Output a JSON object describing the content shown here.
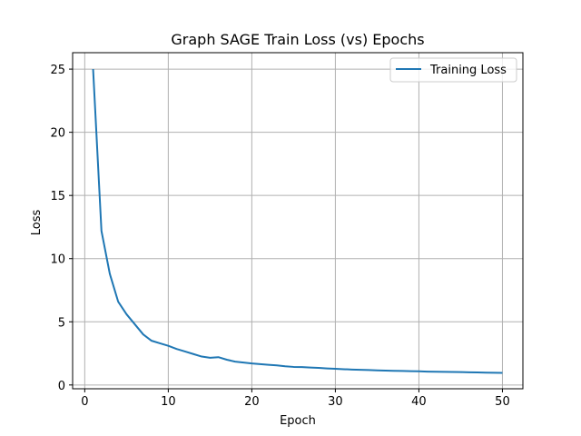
{
  "chart_data": {
    "type": "line",
    "title": "Graph SAGE Train Loss (vs) Epochs",
    "xlabel": "Epoch",
    "ylabel": "Loss",
    "xlim": [
      -1.45,
      52.45
    ],
    "ylim": [
      -0.3,
      26.3
    ],
    "xticks": [
      0,
      10,
      20,
      30,
      40,
      50
    ],
    "yticks": [
      0,
      5,
      10,
      15,
      20,
      25
    ],
    "grid": true,
    "legend_position": "top-right",
    "series": [
      {
        "name": "Training Loss",
        "color": "#1f77b4",
        "x": [
          1,
          2,
          3,
          4,
          5,
          6,
          7,
          8,
          9,
          10,
          11,
          12,
          13,
          14,
          15,
          16,
          17,
          18,
          19,
          20,
          21,
          22,
          23,
          24,
          25,
          26,
          27,
          28,
          29,
          30,
          31,
          32,
          33,
          34,
          35,
          36,
          37,
          38,
          39,
          40,
          41,
          42,
          43,
          44,
          45,
          46,
          47,
          48,
          49,
          50
        ],
        "values": [
          25.0,
          12.2,
          8.8,
          6.6,
          5.6,
          4.8,
          4.0,
          3.5,
          3.3,
          3.1,
          2.85,
          2.65,
          2.45,
          2.25,
          2.15,
          2.2,
          2.0,
          1.85,
          1.78,
          1.7,
          1.65,
          1.6,
          1.55,
          1.48,
          1.43,
          1.42,
          1.38,
          1.35,
          1.31,
          1.28,
          1.25,
          1.22,
          1.2,
          1.18,
          1.16,
          1.14,
          1.12,
          1.11,
          1.09,
          1.08,
          1.06,
          1.05,
          1.04,
          1.03,
          1.02,
          1.0,
          0.99,
          0.98,
          0.97,
          0.96
        ]
      }
    ]
  }
}
